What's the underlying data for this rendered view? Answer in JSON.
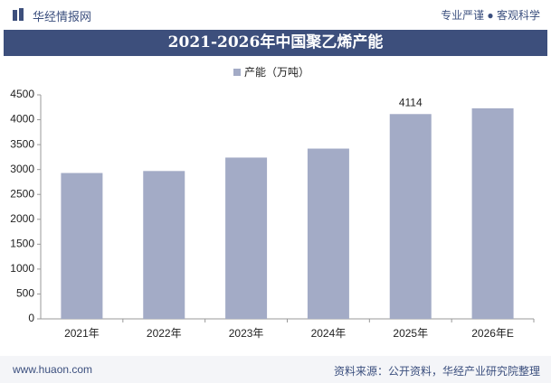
{
  "header": {
    "brand": "华经情报网",
    "slogan": "专业严谨 ● 客观科学"
  },
  "footer": {
    "website": "www.huaon.com",
    "source": "资料来源：公开资料，华经产业研究院整理"
  },
  "chart_data": {
    "type": "bar",
    "title": "2021-2026年中国聚乙烯产能",
    "categories": [
      "2021年",
      "2022年",
      "2023年",
      "2024年",
      "2025年",
      "2026年E"
    ],
    "series": [
      {
        "name": "产能（万吨）",
        "color": "#a3abc6",
        "values": [
          2930,
          2970,
          3240,
          3420,
          4114,
          4230
        ],
        "value_labels": [
          null,
          null,
          null,
          null,
          "4114",
          null
        ]
      }
    ],
    "ylim": [
      0,
      4500
    ],
    "yticks": [
      0,
      500,
      1000,
      1500,
      2000,
      2500,
      3000,
      3500,
      4000,
      4500
    ],
    "grid": false
  }
}
